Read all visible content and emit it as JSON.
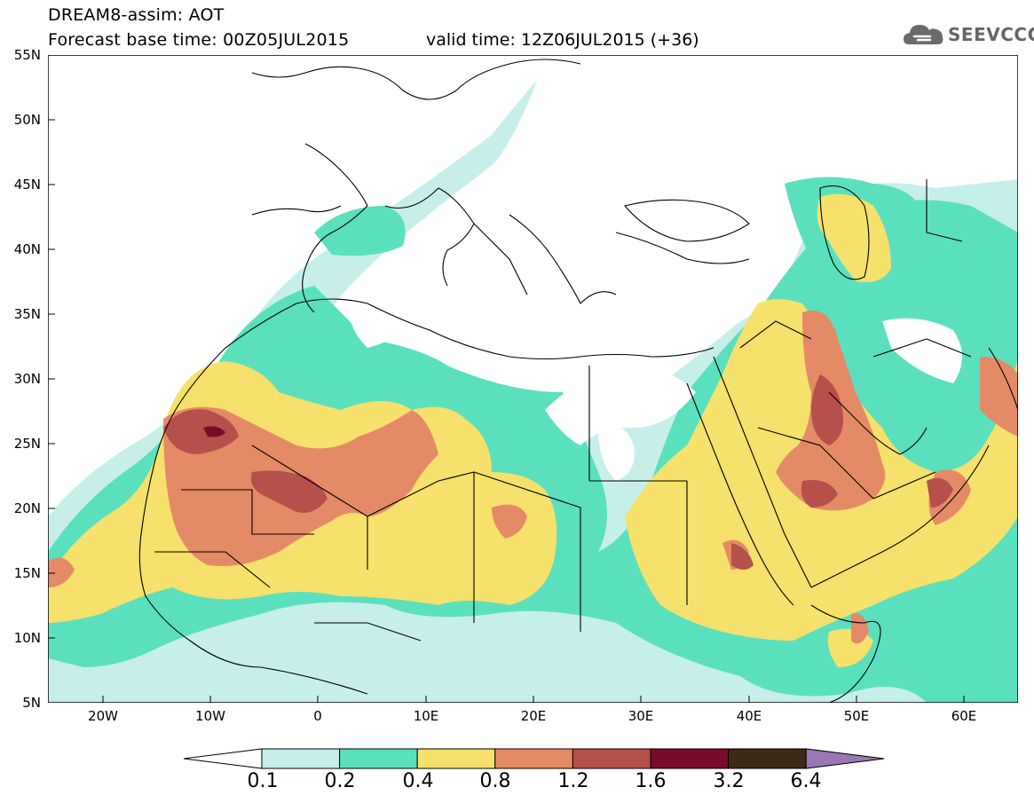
{
  "header": {
    "title_line1": "DREAM8-assim: AOT",
    "title_line2": "Forecast base time: 00Z05JUL2015",
    "valid_time": "valid time: 12Z06JUL2015 (+36)",
    "logo_text": "SEEVCCC",
    "logo_icon": "cloud-icon"
  },
  "axes": {
    "lat_labels": [
      "55N",
      "50N",
      "45N",
      "40N",
      "35N",
      "30N",
      "25N",
      "20N",
      "15N",
      "10N",
      "5N"
    ],
    "lon_labels": [
      "20W",
      "10W",
      "0",
      "10E",
      "20E",
      "30E",
      "40E",
      "50E",
      "60E"
    ]
  },
  "colorbar": {
    "labels": [
      "0.1",
      "0.2",
      "0.4",
      "0.8",
      "1.2",
      "1.6",
      "3.2",
      "6.4"
    ],
    "colors": [
      "#ffffff",
      "#c6efea",
      "#5be0bd",
      "#f5e16b",
      "#e58a66",
      "#b5504a",
      "#7a0a2a",
      "#3f2a16",
      "#9a76b5"
    ]
  },
  "palette": {
    "land_line": "#000000",
    "background": "#ffffff"
  }
}
